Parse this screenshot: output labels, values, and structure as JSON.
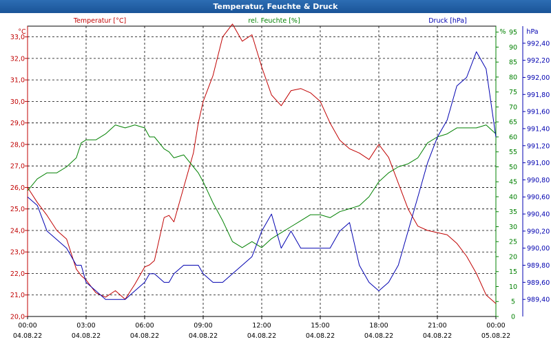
{
  "title": "Temperatur, Feuchte & Druck",
  "colors": {
    "temperature": "#c00000",
    "humidity": "#008000",
    "pressure": "#0000b0",
    "grid": "#000000",
    "title_bar": "#1f5fa6"
  },
  "chart_data": {
    "type": "line",
    "title": "Temperatur, Feuchte & Druck",
    "x_ticks": [
      {
        "time": "00:00",
        "date": "04.08.22"
      },
      {
        "time": "03:00",
        "date": "04.08.22"
      },
      {
        "time": "06:00",
        "date": "04.08.22"
      },
      {
        "time": "09:00",
        "date": "04.08.22"
      },
      {
        "time": "12:00",
        "date": "04.08.22"
      },
      {
        "time": "15:00",
        "date": "04.08.22"
      },
      {
        "time": "18:00",
        "date": "04.08.22"
      },
      {
        "time": "21:00",
        "date": "04.08.22"
      },
      {
        "time": "00:00",
        "date": "05.08.22"
      }
    ],
    "xlim": [
      0,
      24
    ],
    "grid": true,
    "axes": {
      "temperature": {
        "label": "Temperatur [°C]",
        "unit": "°C",
        "ylim": [
          20.0,
          33.5
        ],
        "ticks": [
          "20,0",
          "21,0",
          "22,0",
          "23,0",
          "24,0",
          "25,0",
          "26,0",
          "27,0",
          "28,0",
          "29,0",
          "30,0",
          "31,0",
          "32,0",
          "33,0"
        ]
      },
      "humidity": {
        "label": "rel. Feuchte [%]",
        "unit": "%",
        "ylim": [
          0,
          97
        ],
        "ticks": [
          "0",
          "5",
          "10",
          "15",
          "20",
          "25",
          "30",
          "35",
          "40",
          "45",
          "50",
          "55",
          "60",
          "65",
          "70",
          "75",
          "80",
          "85",
          "90",
          "95"
        ]
      },
      "pressure": {
        "label": "Druck [hPa]",
        "unit": "hPa",
        "ylim": [
          989.2,
          992.6
        ],
        "ticks": [
          "989,40",
          "989,60",
          "989,80",
          "990,00",
          "990,20",
          "990,40",
          "990,60",
          "990,80",
          "991,00",
          "991,20",
          "991,40",
          "991,60",
          "991,80",
          "992,00",
          "992,20",
          "992,40"
        ]
      }
    },
    "series": [
      {
        "name": "Temperatur [°C]",
        "axis": "temperature",
        "x": [
          0,
          0.5,
          1,
          1.5,
          2,
          2.5,
          2.75,
          3,
          3.5,
          4,
          4.5,
          5,
          5.5,
          6,
          6.25,
          6.5,
          7,
          7.25,
          7.5,
          8,
          8.5,
          8.75,
          9,
          9.5,
          10,
          10.5,
          11,
          11.5,
          12,
          12.5,
          13,
          13.5,
          14,
          14.5,
          15,
          15.5,
          16,
          16.5,
          17,
          17.5,
          18,
          18.5,
          19,
          19.5,
          20,
          20.5,
          21,
          21.5,
          22,
          22.5,
          23,
          23.5,
          24
        ],
        "values": [
          26.0,
          25.3,
          24.7,
          24.0,
          23.6,
          22.2,
          21.9,
          21.7,
          21.1,
          20.9,
          21.2,
          20.8,
          21.5,
          22.3,
          22.4,
          22.6,
          24.6,
          24.7,
          24.4,
          26.0,
          27.6,
          29.0,
          30.0,
          31.2,
          33.0,
          33.6,
          32.8,
          33.1,
          31.6,
          30.3,
          29.8,
          30.5,
          30.6,
          30.4,
          30.0,
          29.0,
          28.2,
          27.8,
          27.6,
          27.3,
          28.0,
          27.4,
          26.2,
          25.0,
          24.2,
          24.0,
          23.9,
          23.8,
          23.4,
          22.8,
          22.0,
          21.0,
          20.6
        ]
      },
      {
        "name": "rel. Feuchte [%]",
        "axis": "humidity",
        "x": [
          0,
          0.5,
          1,
          1.5,
          2,
          2.5,
          2.75,
          3,
          3.5,
          4,
          4.5,
          5,
          5.5,
          6,
          6.25,
          6.5,
          7,
          7.25,
          7.5,
          8,
          8.5,
          8.75,
          9,
          9.5,
          10,
          10.5,
          11,
          11.5,
          12,
          12.5,
          13,
          13.5,
          14,
          14.5,
          15,
          15.5,
          16,
          16.5,
          17,
          17.5,
          18,
          18.5,
          19,
          19.5,
          20,
          20.5,
          21,
          21.5,
          22,
          22.5,
          23,
          23.5,
          24
        ],
        "values": [
          42,
          46,
          48,
          48,
          50,
          53,
          58,
          59,
          59,
          61,
          64,
          63,
          64,
          63,
          60,
          60,
          56,
          55,
          53,
          54,
          50,
          48,
          45,
          38,
          32,
          25,
          23,
          25,
          23,
          26,
          28,
          30,
          32,
          34,
          34,
          33,
          35,
          36,
          37,
          40,
          45,
          48,
          50,
          51,
          53,
          58,
          60,
          61,
          63,
          63,
          63,
          64,
          61
        ]
      },
      {
        "name": "Druck [hPa]",
        "axis": "pressure",
        "x": [
          0,
          0.5,
          1,
          1.5,
          2,
          2.5,
          2.75,
          3,
          3.5,
          4,
          4.5,
          5,
          5.5,
          6,
          6.25,
          6.5,
          7,
          7.25,
          7.5,
          8,
          8.5,
          8.75,
          9,
          9.5,
          10,
          10.5,
          11,
          11.5,
          12,
          12.5,
          13,
          13.5,
          14,
          14.5,
          15,
          15.5,
          16,
          16.5,
          17,
          17.5,
          18,
          18.5,
          19,
          19.5,
          20,
          20.5,
          21,
          21.5,
          22,
          22.5,
          23,
          23.5,
          24
        ],
        "values": [
          990.6,
          990.5,
          990.2,
          990.1,
          990.0,
          989.8,
          989.8,
          989.6,
          989.5,
          989.4,
          989.4,
          989.4,
          989.5,
          989.6,
          989.7,
          989.7,
          989.6,
          989.6,
          989.7,
          989.8,
          989.8,
          989.8,
          989.7,
          989.6,
          989.6,
          989.7,
          989.8,
          989.9,
          990.2,
          990.4,
          990.0,
          990.2,
          990.0,
          990.0,
          990.0,
          990.0,
          990.2,
          990.3,
          989.8,
          989.6,
          989.5,
          989.6,
          989.8,
          990.2,
          990.6,
          991.0,
          991.3,
          991.5,
          991.9,
          992.0,
          992.3,
          992.1,
          991.3
        ]
      }
    ]
  }
}
